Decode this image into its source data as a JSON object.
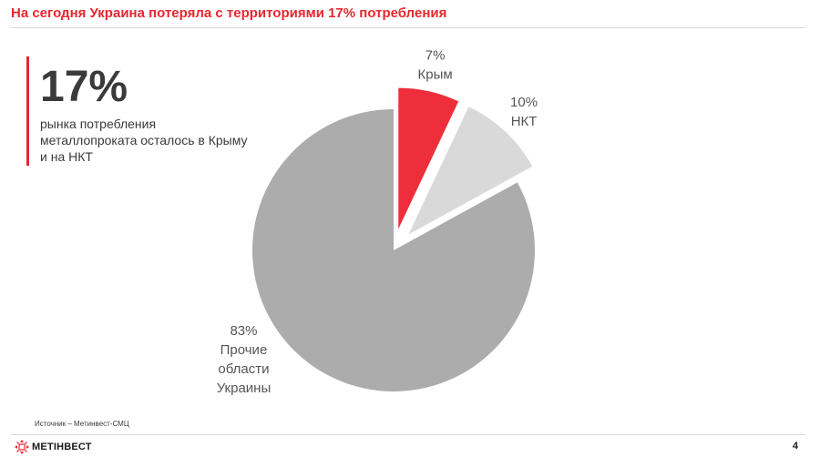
{
  "slide": {
    "title": "На сегодня Украина потеряла с территориями 17% потребления",
    "page_number": "4"
  },
  "callout": {
    "value": "17%",
    "text": "рынка потребления металлопроката осталось в Крыму и на НКТ"
  },
  "source": "Источник – Метинвест-СМЦ",
  "logo": {
    "text": "МЕТІНВЕСТ"
  },
  "colors": {
    "accent": "#e8262f",
    "crimea": "#ee2f3b",
    "nkt": "#d9d9d9",
    "other": "#acacac"
  },
  "chart_data": {
    "type": "pie",
    "slices": [
      {
        "label": "Крым",
        "value": 7,
        "value_label": "7%",
        "color": "#ee2f3b",
        "exploded": true
      },
      {
        "label": "НКТ",
        "value": 10,
        "value_label": "10%",
        "color": "#d9d9d9",
        "exploded": true
      },
      {
        "label": "Прочие области Украины",
        "label_lines": [
          "Прочие",
          "области",
          "Украины"
        ],
        "value": 83,
        "value_label": "83%",
        "color": "#acacac",
        "exploded": false
      }
    ]
  }
}
